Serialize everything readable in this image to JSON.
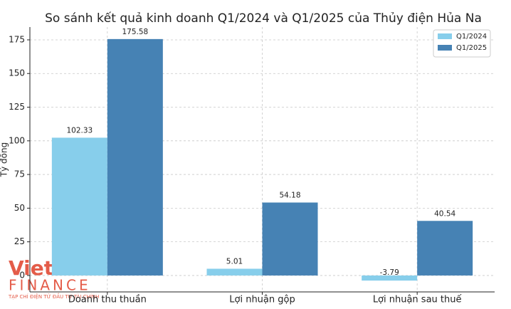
{
  "chart_data": {
    "type": "grouped-bar",
    "title": "So sánh kết quả kinh doanh Q1/2024 và Q1/2025 của Thủy điện Hủa Na",
    "y_label": "Tỷ đồng",
    "categories": [
      "Doanh thu thuần",
      "Lợi nhuận gộp",
      "Lợi nhuận sau thuế"
    ],
    "series": [
      {
        "name": "Q1/2024",
        "color": "#87ceeb",
        "values": [
          102.33,
          5.01,
          -3.79
        ]
      },
      {
        "name": "Q1/2025",
        "color": "#4682b4",
        "values": [
          175.58,
          54.18,
          40.54
        ]
      }
    ],
    "ylim": [
      -12.2,
      184.5
    ],
    "yticks": [
      0,
      25,
      50,
      75,
      100,
      125,
      150,
      175
    ],
    "grid": true,
    "legend": "upper-right"
  },
  "watermark": {
    "brand_1": "VietNam",
    "brand_2": "FINANCE",
    "tagline": "TẠP CHÍ ĐIỆN TỬ ĐẦU TƯ TÀI CHÍNH"
  }
}
